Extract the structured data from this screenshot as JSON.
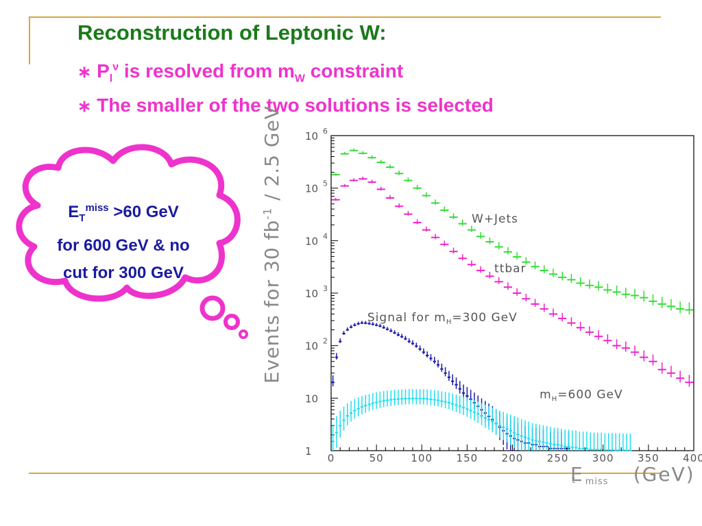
{
  "slide": {
    "title": "Reconstruction of Leptonic W:",
    "bullets": [
      {
        "star": "∗",
        "p": "P",
        "p_sub": "l",
        "p_sup": "ν",
        "text1": " is resolved from m",
        "w_sub": "W",
        "text2": " constraint"
      },
      {
        "star": "∗",
        "text": "The smaller of the two solutions is selected"
      }
    ],
    "cloud": {
      "e": "E",
      "e_sub": "T",
      "e_sup": "miss",
      "line1_rest": " >60 GeV",
      "line2": "for 600 GeV & no",
      "line3": "cut for 300 GeV"
    },
    "colors": {
      "title": "#1a7a1a",
      "bullet": "#ee33cc",
      "cloud": "#ee33cc",
      "cloud_text": "#1a1aa0",
      "rule": "#d9a441"
    }
  },
  "chart_data": {
    "type": "scatter",
    "x_axis": {
      "label_main": "E",
      "label_sub": "t",
      "label_sup": "miss",
      "label_unit": "(GeV)",
      "range": [
        0,
        400
      ],
      "ticks": [
        0,
        50,
        100,
        150,
        200,
        250,
        300,
        350,
        400
      ]
    },
    "y_axis": {
      "label_main": "Events for 30 fb",
      "label_sup": "-1",
      "label_rest": " / 2.5 GeV",
      "scale": "log",
      "range": [
        1,
        1000000
      ],
      "ticks": [
        {
          "value": 1,
          "label": "1"
        },
        {
          "value": 10,
          "label": "10"
        },
        {
          "value": 100,
          "label": "10",
          "exp": "2"
        },
        {
          "value": 1000,
          "label": "10",
          "exp": "3"
        },
        {
          "value": 10000,
          "label": "10",
          "exp": "4"
        },
        {
          "value": 100000,
          "label": "10",
          "exp": "5"
        },
        {
          "value": 1000000,
          "label": "10",
          "exp": "6"
        }
      ]
    },
    "annotations": [
      {
        "text": "W+Jets",
        "x": 155,
        "y": 22000
      },
      {
        "text": "ttbar",
        "x": 180,
        "y": 2500
      },
      {
        "text": "Signal for m",
        "sub": "H",
        "rest": "=300 GeV",
        "x": 40,
        "y": 290
      },
      {
        "text": "m",
        "sub": "H",
        "rest": "=600 GeV",
        "x": 230,
        "y": 10
      }
    ],
    "series": [
      {
        "name": "W+Jets",
        "color": "#33dd33",
        "x": [
          5,
          15,
          25,
          35,
          45,
          55,
          65,
          75,
          85,
          95,
          105,
          115,
          125,
          135,
          145,
          155,
          165,
          175,
          185,
          195,
          205,
          215,
          225,
          235,
          245,
          255,
          265,
          275,
          285,
          295,
          305,
          315,
          325,
          335,
          345,
          355,
          365,
          375,
          385,
          395
        ],
        "y": [
          180000,
          450000,
          520000,
          460000,
          380000,
          310000,
          250000,
          190000,
          140000,
          100000,
          72000,
          52000,
          38000,
          28000,
          21000,
          16000,
          12000,
          9500,
          7600,
          6100,
          4900,
          3900,
          3200,
          2700,
          2300,
          2000,
          1800,
          1550,
          1400,
          1300,
          1150,
          1050,
          950,
          900,
          820,
          700,
          620,
          560,
          500,
          480
        ]
      },
      {
        "name": "ttbar",
        "color": "#ee22cc",
        "x": [
          5,
          15,
          25,
          35,
          45,
          55,
          65,
          75,
          85,
          95,
          105,
          115,
          125,
          135,
          145,
          155,
          165,
          175,
          185,
          195,
          205,
          215,
          225,
          235,
          245,
          255,
          265,
          275,
          285,
          295,
          305,
          315,
          325,
          335,
          345,
          355,
          365,
          375,
          385,
          395
        ],
        "y": [
          60000,
          110000,
          140000,
          150000,
          130000,
          95000,
          65000,
          45000,
          32000,
          22000,
          16000,
          11500,
          8500,
          6200,
          4600,
          3500,
          2700,
          2100,
          1650,
          1300,
          1000,
          780,
          620,
          500,
          400,
          330,
          270,
          220,
          180,
          150,
          125,
          100,
          90,
          75,
          60,
          50,
          35,
          30,
          24,
          20
        ]
      },
      {
        "name": "Signal for mH=300 GeV",
        "color": "#1a1aaa",
        "x": [
          2,
          6,
          10,
          14,
          18,
          22,
          26,
          30,
          34,
          38,
          42,
          46,
          50,
          54,
          58,
          62,
          66,
          70,
          74,
          78,
          82,
          86,
          90,
          94,
          98,
          102,
          106,
          110,
          114,
          118,
          122,
          126,
          130,
          134,
          138,
          142,
          146,
          150,
          154,
          158,
          162,
          166,
          170,
          174,
          178,
          182,
          186,
          190,
          194,
          198,
          202,
          206,
          210,
          214,
          218,
          222,
          226,
          230,
          234,
          238,
          242,
          246,
          250,
          254,
          258,
          262
        ],
        "y": [
          20,
          60,
          120,
          170,
          200,
          225,
          245,
          260,
          270,
          268,
          262,
          255,
          245,
          235,
          220,
          205,
          190,
          175,
          160,
          148,
          135,
          120,
          110,
          98,
          86,
          75,
          65,
          57,
          50,
          43,
          36,
          30,
          25,
          21,
          18,
          15,
          12.5,
          11,
          9.5,
          8.2,
          7,
          6,
          5.2,
          4.5,
          3.9,
          3.3,
          2.8,
          2.4,
          2.1,
          1.9,
          1.7,
          1.6,
          1.5,
          1.4,
          1.4,
          1.3,
          1.3,
          1.2,
          1.2,
          1.2,
          1.1,
          1.1,
          1.1,
          1.1,
          1.1,
          1.1
        ]
      },
      {
        "name": "mH=600 GeV",
        "color": "#22ddee",
        "x": [
          2,
          6,
          10,
          14,
          18,
          22,
          26,
          30,
          34,
          38,
          42,
          46,
          50,
          54,
          58,
          62,
          66,
          70,
          74,
          78,
          82,
          86,
          90,
          94,
          98,
          102,
          106,
          110,
          114,
          118,
          122,
          126,
          130,
          134,
          138,
          142,
          146,
          150,
          154,
          158,
          162,
          166,
          170,
          174,
          178,
          182,
          186,
          190,
          194,
          198,
          202,
          206,
          210,
          214,
          218,
          222,
          226,
          230,
          234,
          238,
          242,
          246,
          250,
          254,
          258,
          262,
          266,
          270,
          274,
          278,
          282,
          286,
          290,
          294,
          298,
          302,
          306,
          310,
          314,
          318,
          322,
          326,
          330
        ],
        "y": [
          1.5,
          2.2,
          3,
          3.8,
          4.6,
          5.2,
          5.8,
          6.3,
          6.8,
          7.2,
          7.6,
          8,
          8.3,
          8.6,
          8.9,
          9.1,
          9.3,
          9.5,
          9.6,
          9.7,
          9.8,
          9.85,
          9.9,
          9.9,
          9.85,
          9.8,
          9.7,
          9.5,
          9.3,
          9.1,
          8.8,
          8.5,
          8.2,
          7.8,
          7.4,
          7,
          6.6,
          6.2,
          5.8,
          5.4,
          5,
          4.6,
          4.2,
          3.9,
          3.6,
          3.3,
          3,
          2.8,
          2.6,
          2.4,
          2.2,
          2.05,
          1.9,
          1.8,
          1.7,
          1.6,
          1.55,
          1.5,
          1.45,
          1.4,
          1.35,
          1.3,
          1.3,
          1.25,
          1.2,
          1.2,
          1.15,
          1.15,
          1.1,
          1.1,
          1.1,
          1.05,
          1.05,
          1.05,
          1.05,
          1.03,
          1.03,
          1.03,
          1.02,
          1.02,
          1.02,
          1.01,
          1.01
        ]
      }
    ]
  }
}
